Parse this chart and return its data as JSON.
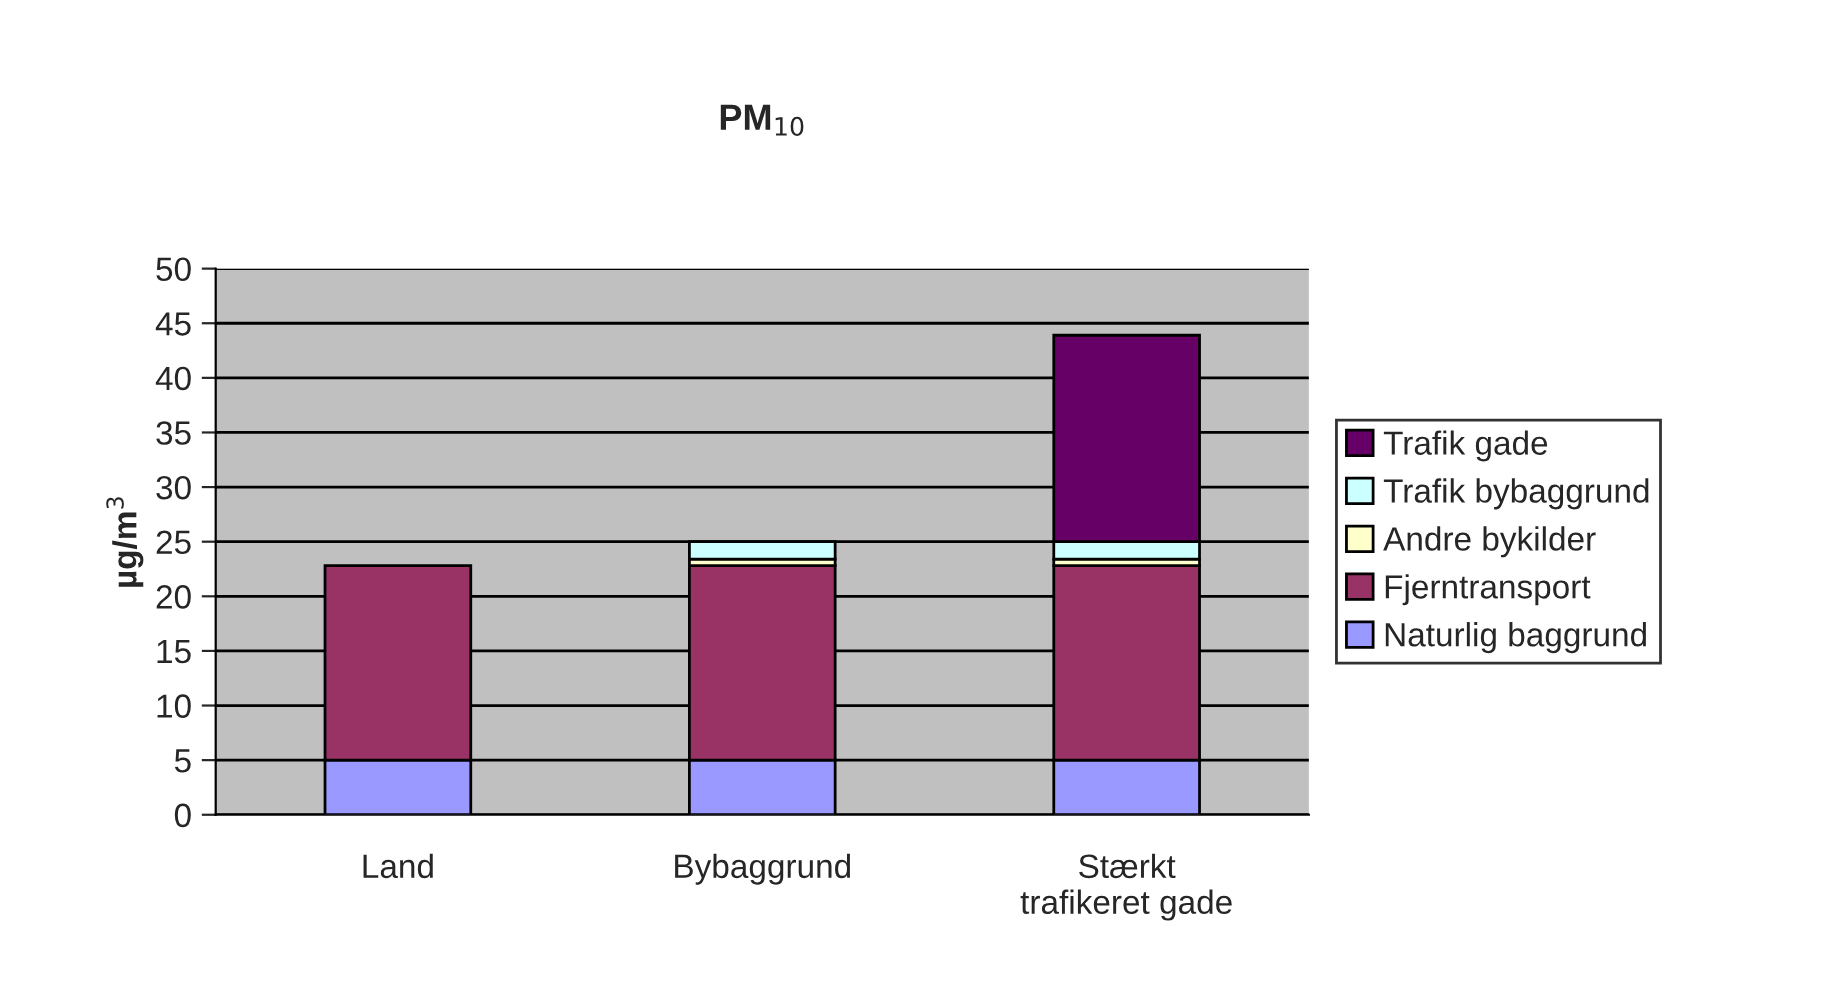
{
  "chart_data": {
    "type": "bar",
    "title": "PM$_{10}$",
    "ylabel": "µg/m$^{3}$",
    "categories": [
      "Land",
      "Bybaggrund",
      "Stærkt\ntrafikeret gade"
    ],
    "stacked": true,
    "ylim": [
      0,
      50
    ],
    "yticks": [
      0,
      5,
      10,
      15,
      20,
      25,
      30,
      35,
      40,
      45,
      50
    ],
    "grid": "y",
    "legend": "right",
    "series": [
      {
        "name": "Naturlig baggrund",
        "color": "#9999ff",
        "values": [
          5,
          5,
          5
        ]
      },
      {
        "name": "Fjerntransport",
        "color": "#993366",
        "values": [
          17.8,
          17.8,
          17.8
        ]
      },
      {
        "name": "Andre bykilder",
        "color": "#ffffcc",
        "values": [
          null,
          0.6,
          0.6
        ]
      },
      {
        "name": "Trafik bybaggrund",
        "color": "#ccffff",
        "values": [
          null,
          1.6,
          1.6
        ]
      },
      {
        "name": "Trafik gade",
        "color": "#660066",
        "values": [
          null,
          null,
          18.9
        ]
      }
    ]
  }
}
